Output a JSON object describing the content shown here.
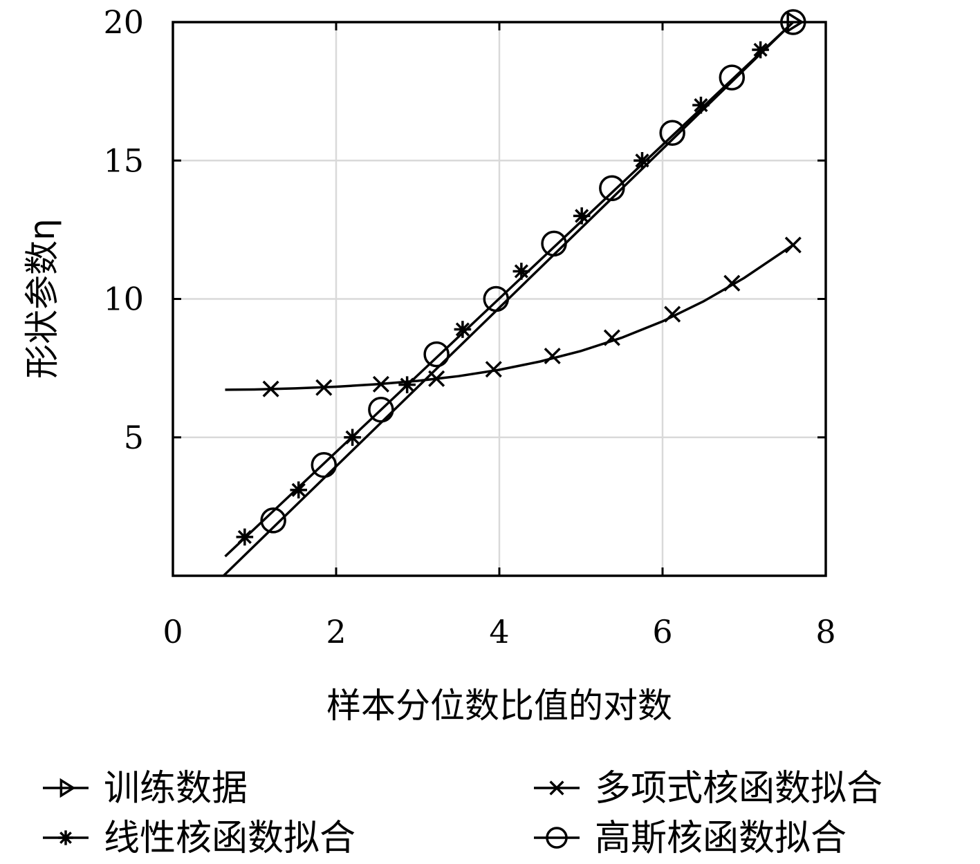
{
  "chart_data": {
    "type": "line",
    "title": "",
    "xlabel": "样本分位数比值的对数",
    "ylabel": "形状参数η",
    "xlim": [
      0,
      8
    ],
    "ylim": [
      0,
      20
    ],
    "x_ticks": [
      "0",
      "2",
      "4",
      "6",
      "8"
    ],
    "y_ticks": [
      "5",
      "10",
      "15",
      "20"
    ],
    "grid": true,
    "legend_position": "bottom",
    "colors": {
      "line": "#000000",
      "grid": "#d9d9d9",
      "background": "#ffffff"
    },
    "series": [
      {
        "name": "训练数据",
        "marker": "triangle-right",
        "x": [
          7.6
        ],
        "y": [
          20.0
        ]
      },
      {
        "name": "线性核函数拟合",
        "marker": "asterisk",
        "line": {
          "x": [
            0.64,
            7.6
          ],
          "y": [
            0.7,
            20.0
          ]
        },
        "x": [
          0.88,
          1.54,
          2.2,
          2.87,
          3.55,
          4.27,
          5.01,
          5.75,
          6.47,
          7.2
        ],
        "y": [
          1.4,
          3.1,
          5.0,
          6.9,
          8.9,
          11.0,
          13.0,
          15.0,
          17.0,
          19.0
        ]
      },
      {
        "name": "多项式核函数拟合",
        "marker": "x",
        "line": {
          "x": [
            0.64,
            1.0,
            1.5,
            2.0,
            2.5,
            3.0,
            3.5,
            4.0,
            4.5,
            5.0,
            5.5,
            6.0,
            6.5,
            7.0,
            7.6
          ],
          "y": [
            6.72,
            6.73,
            6.77,
            6.83,
            6.92,
            7.04,
            7.21,
            7.44,
            7.74,
            8.12,
            8.6,
            9.19,
            9.91,
            10.76,
            11.95
          ]
        },
        "x": [
          1.2,
          1.85,
          2.55,
          3.23,
          3.93,
          4.65,
          5.38,
          6.12,
          6.85,
          7.6
        ],
        "y": [
          6.75,
          6.8,
          6.92,
          7.12,
          7.46,
          7.94,
          8.6,
          9.45,
          10.57,
          11.95
        ]
      },
      {
        "name": "高斯核函数拟合",
        "marker": "circle",
        "line": {
          "x": [
            0.62,
            7.6
          ],
          "y": [
            0.0,
            20.0
          ]
        },
        "x": [
          1.23,
          1.85,
          2.55,
          3.23,
          3.96,
          4.67,
          5.38,
          6.12,
          6.85,
          7.6
        ],
        "y": [
          2.0,
          4.0,
          6.0,
          8.0,
          10.0,
          12.0,
          14.0,
          16.0,
          18.0,
          20.0
        ]
      }
    ]
  }
}
